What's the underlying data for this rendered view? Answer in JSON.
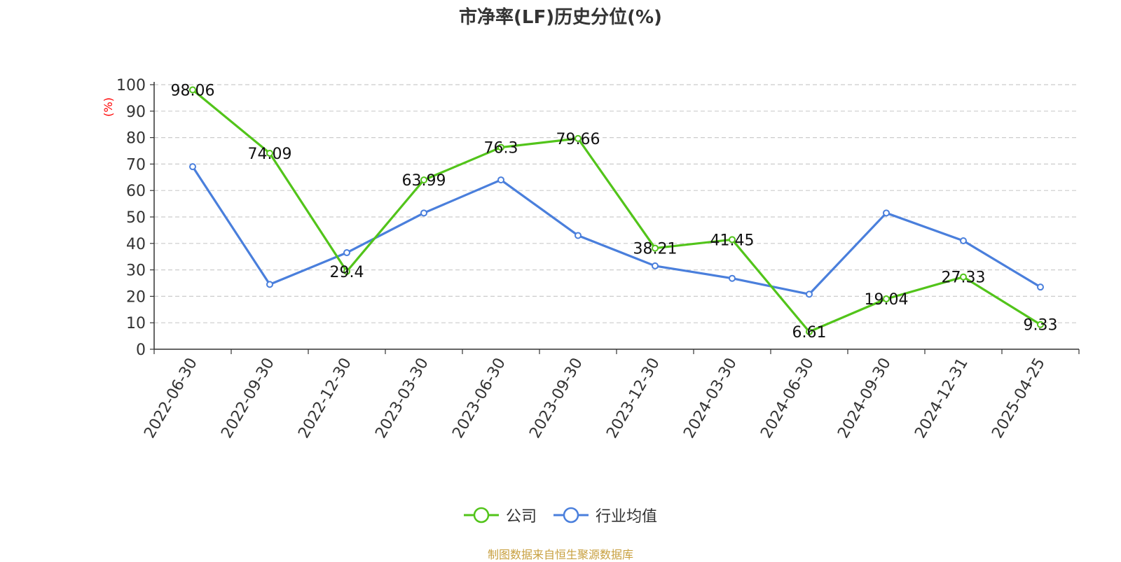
{
  "chart_data": {
    "type": "line",
    "title": "市净率(LF)历史分位(%)",
    "ylabel": "(%)",
    "xlabel": "",
    "ylim": [
      0,
      100
    ],
    "yticks": [
      0,
      10,
      20,
      30,
      40,
      50,
      60,
      70,
      80,
      90,
      100
    ],
    "grid": true,
    "legend_position": "bottom-center",
    "categories": [
      "2022-06-30",
      "2022-09-30",
      "2022-12-30",
      "2023-03-30",
      "2023-06-30",
      "2023-09-30",
      "2023-12-30",
      "2024-03-30",
      "2024-06-30",
      "2024-09-30",
      "2024-12-31",
      "2025-04-25"
    ],
    "series": [
      {
        "name": "公司",
        "color": "#52c41a",
        "values": [
          98.06,
          74.09,
          29.4,
          63.99,
          76.3,
          79.66,
          38.21,
          41.45,
          6.61,
          19.04,
          27.33,
          9.33
        ],
        "labels": [
          "98.06",
          "74.09",
          "29.4",
          "63.99",
          "76.3",
          "79.66",
          "38.21",
          "41.45",
          "6.61",
          "19.04",
          "27.33",
          "9.33"
        ],
        "show_labels": true
      },
      {
        "name": "行业均值",
        "color": "#4a7fdc",
        "values": [
          69,
          24.5,
          36.5,
          51.5,
          64,
          43,
          31.5,
          26.8,
          20.8,
          51.5,
          41,
          23.5
        ],
        "show_labels": false
      }
    ]
  },
  "footer": {
    "source": "制图数据来自恒生聚源数据库"
  }
}
